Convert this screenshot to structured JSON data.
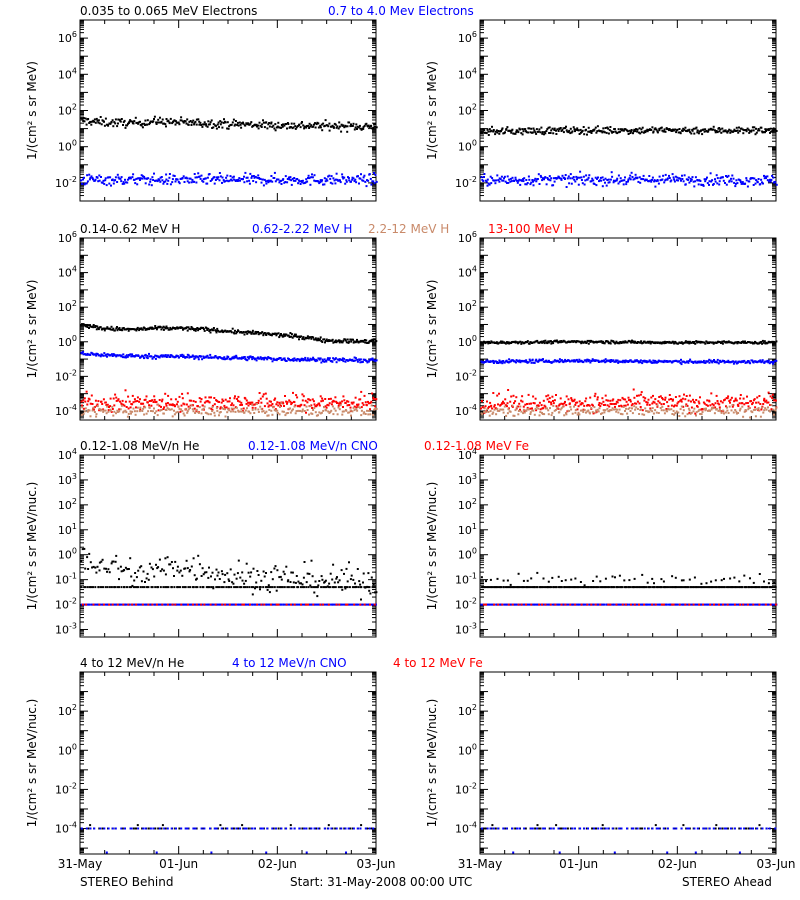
{
  "footer": {
    "left": "STEREO Behind",
    "center": "Start: 31-May-2008 00:00 UTC",
    "right": "STEREO Ahead"
  },
  "x_axis": {
    "tick_labels": [
      "31-May",
      "01-Jun",
      "02-Jun",
      "03-Jun"
    ],
    "range_days": [
      0,
      3
    ]
  },
  "rows": [
    {
      "ylabel": "1/(cm² s sr MeV)",
      "titles": [
        {
          "text": "0.035 to 0.065 MeV Electrons",
          "color": "#000000"
        },
        {
          "text": "0.7 to 4.0 Mev Electrons",
          "color": "#0000ff"
        }
      ]
    },
    {
      "ylabel": "1/(cm² s sr MeV)",
      "titles": [
        {
          "text": "0.14-0.62 MeV H",
          "color": "#000000"
        },
        {
          "text": "0.62-2.22 MeV H",
          "color": "#0000ff"
        },
        {
          "text": "2.2-12 MeV H",
          "color": "#c98a6a"
        },
        {
          "text": "13-100 MeV H",
          "color": "#ff0000"
        }
      ]
    },
    {
      "ylabel": "1/(cm² s sr MeV/nuc.)",
      "titles": [
        {
          "text": "0.12-1.08 MeV/n He",
          "color": "#000000"
        },
        {
          "text": "0.12-1.08 MeV/n CNO",
          "color": "#0000ff"
        },
        {
          "text": "0.12-1.08 MeV Fe",
          "color": "#ff0000"
        }
      ]
    },
    {
      "ylabel": "1/(cm² s sr MeV/nuc.)",
      "titles": [
        {
          "text": "4 to 12 MeV/n He",
          "color": "#000000"
        },
        {
          "text": "4 to 12 MeV/n CNO",
          "color": "#0000ff"
        },
        {
          "text": "4 to 12 MeV Fe",
          "color": "#ff0000"
        }
      ]
    }
  ],
  "chart_data": [
    {
      "type": "scatter",
      "panel": "Behind",
      "row": 0,
      "yscale": "log",
      "ylim": [
        0.001,
        10000000
      ],
      "yticks": [
        0.01,
        1,
        100,
        10000,
        1000000
      ],
      "xlim": [
        0,
        3
      ],
      "series": [
        {
          "color": "#000000",
          "x": [
            0,
            0.25,
            0.5,
            0.75,
            1.0,
            1.25,
            1.5,
            2.0,
            2.5,
            3.0
          ],
          "y": [
            28,
            22,
            20,
            25,
            22,
            20,
            18,
            15,
            14,
            13
          ],
          "scatter": 0.12,
          "density": 350
        },
        {
          "color": "#0000ff",
          "x": [
            0,
            1.0,
            2.0,
            3.0
          ],
          "y": [
            0.015,
            0.015,
            0.015,
            0.015
          ],
          "scatter": 0.15,
          "density": 350
        }
      ]
    },
    {
      "type": "scatter",
      "panel": "Ahead",
      "row": 0,
      "yscale": "log",
      "ylim": [
        0.001,
        10000000
      ],
      "yticks": [
        0.01,
        1,
        100,
        10000,
        1000000
      ],
      "xlim": [
        0,
        3
      ],
      "series": [
        {
          "color": "#000000",
          "x": [
            0,
            1.0,
            2.0,
            3.0
          ],
          "y": [
            7,
            8,
            8,
            8
          ],
          "scatter": 0.1,
          "density": 350
        },
        {
          "color": "#0000ff",
          "x": [
            0,
            1.0,
            2.0,
            3.0
          ],
          "y": [
            0.014,
            0.015,
            0.015,
            0.014
          ],
          "scatter": 0.15,
          "density": 350
        }
      ]
    },
    {
      "type": "scatter",
      "panel": "Behind",
      "row": 1,
      "yscale": "log",
      "ylim": [
        3e-05,
        1000000
      ],
      "yticks": [
        0.0001,
        0.01,
        1,
        100,
        10000,
        1000000
      ],
      "xlim": [
        0,
        3
      ],
      "series": [
        {
          "color": "#000000",
          "x": [
            0,
            0.2,
            0.5,
            0.8,
            1.0,
            1.3,
            1.5,
            2.0,
            2.2,
            2.5,
            2.9,
            3.0
          ],
          "y": [
            10,
            6,
            5,
            6,
            6,
            5,
            4,
            2.5,
            2,
            1.2,
            1.0,
            1.3
          ],
          "scatter": 0.06,
          "density": 350
        },
        {
          "color": "#0000ff",
          "x": [
            0,
            0.5,
            1.0,
            1.5,
            2.0,
            2.5,
            3.0
          ],
          "y": [
            0.2,
            0.15,
            0.14,
            0.12,
            0.1,
            0.09,
            0.08
          ],
          "scatter": 0.06,
          "density": 350
        },
        {
          "color": "#ff0000",
          "x": [
            0,
            1.0,
            2.0,
            3.0
          ],
          "y": [
            0.0003,
            0.0003,
            0.0003,
            0.0003
          ],
          "scatter": 0.25,
          "density": 350
        },
        {
          "color": "#c98a6a",
          "x": [
            0,
            1.0,
            2.0,
            3.0
          ],
          "y": [
            0.0001,
            0.0001,
            0.0001,
            0.0001
          ],
          "scatter": 0.15,
          "density": 250
        }
      ]
    },
    {
      "type": "scatter",
      "panel": "Ahead",
      "row": 1,
      "yscale": "log",
      "ylim": [
        3e-05,
        1000000
      ],
      "yticks": [
        0.0001,
        0.01,
        1,
        100,
        10000,
        1000000
      ],
      "xlim": [
        0,
        3
      ],
      "series": [
        {
          "color": "#000000",
          "x": [
            0,
            1.0,
            2.0,
            3.0
          ],
          "y": [
            0.9,
            1.0,
            0.9,
            0.9
          ],
          "scatter": 0.04,
          "density": 350
        },
        {
          "color": "#0000ff",
          "x": [
            0,
            1.0,
            2.0,
            3.0
          ],
          "y": [
            0.07,
            0.08,
            0.07,
            0.07
          ],
          "scatter": 0.05,
          "density": 350
        },
        {
          "color": "#ff0000",
          "x": [
            0,
            1.0,
            2.0,
            3.0
          ],
          "y": [
            0.0003,
            0.0003,
            0.0003,
            0.0003
          ],
          "scatter": 0.25,
          "density": 350
        },
        {
          "color": "#c98a6a",
          "x": [
            0,
            1.0,
            2.0,
            3.0
          ],
          "y": [
            0.0001,
            0.0001,
            0.0001,
            0.0001
          ],
          "scatter": 0.15,
          "density": 250
        }
      ]
    },
    {
      "type": "scatter",
      "panel": "Behind",
      "row": 2,
      "yscale": "log",
      "ylim": [
        0.0005,
        10000
      ],
      "yticks": [
        0.001,
        0.01,
        0.1,
        1,
        10,
        100,
        1000,
        10000
      ],
      "xlim": [
        0,
        3
      ],
      "series": [
        {
          "color": "#000000",
          "x": [
            0,
            0.3,
            0.6,
            0.9,
            1.2,
            1.5,
            2.0,
            2.5,
            3.0
          ],
          "y": [
            0.6,
            0.35,
            0.15,
            0.35,
            0.3,
            0.15,
            0.12,
            0.1,
            0.08
          ],
          "scatter": 0.3,
          "density": 220
        },
        {
          "color": "#000000",
          "x": [
            0,
            3.0
          ],
          "y": [
            0.05,
            0.05
          ],
          "scatter": 0.0,
          "density": 150
        },
        {
          "color": "#0000ff",
          "x": [
            0,
            3.0
          ],
          "y": [
            0.01,
            0.01
          ],
          "scatter": 0.0,
          "density": 250
        },
        {
          "color": "#ff0000",
          "x": [
            0,
            3.0
          ],
          "y": [
            0.01,
            0.01
          ],
          "scatter": 0.0,
          "density": 60
        }
      ]
    },
    {
      "type": "scatter",
      "panel": "Ahead",
      "row": 2,
      "yscale": "log",
      "ylim": [
        0.0005,
        10000
      ],
      "yticks": [
        0.001,
        0.01,
        0.1,
        1,
        10,
        100,
        1000,
        10000
      ],
      "xlim": [
        0,
        3
      ],
      "series": [
        {
          "color": "#000000",
          "x": [
            0,
            3.0
          ],
          "y": [
            0.1,
            0.1
          ],
          "scatter": 0.1,
          "density": 60
        },
        {
          "color": "#000000",
          "x": [
            0,
            3.0
          ],
          "y": [
            0.05,
            0.05
          ],
          "scatter": 0.0,
          "density": 220
        },
        {
          "color": "#0000ff",
          "x": [
            0,
            3.0
          ],
          "y": [
            0.01,
            0.01
          ],
          "scatter": 0.0,
          "density": 250
        },
        {
          "color": "#ff0000",
          "x": [
            0,
            3.0
          ],
          "y": [
            0.01,
            0.01
          ],
          "scatter": 0.0,
          "density": 60
        }
      ]
    },
    {
      "type": "scatter",
      "panel": "Behind",
      "row": 3,
      "yscale": "log",
      "ylim": [
        5e-06,
        10000
      ],
      "yticks": [
        0.0001,
        0.01,
        1,
        100
      ],
      "xlim": [
        0,
        3
      ],
      "series": [
        {
          "color": "#000000",
          "x": [
            0,
            3.0
          ],
          "y": [
            0.0001,
            0.0001
          ],
          "scatter": 0.0,
          "density": 70
        },
        {
          "color": "#0000ff",
          "x": [
            0,
            3.0
          ],
          "y": [
            0.0001,
            0.0001
          ],
          "scatter": 0.0,
          "density": 70
        },
        {
          "color": "#000000",
          "x": [
            0,
            3.0
          ],
          "y": [
            0.00015,
            0.00015
          ],
          "scatter": 0.0,
          "density": 8
        },
        {
          "color": "#0000ff",
          "x": [
            0,
            3.0
          ],
          "y": [
            6e-06,
            6e-06
          ],
          "scatter": 0.0,
          "density": 6
        }
      ]
    },
    {
      "type": "scatter",
      "panel": "Ahead",
      "row": 3,
      "yscale": "log",
      "ylim": [
        5e-06,
        10000
      ],
      "yticks": [
        0.0001,
        0.01,
        1,
        100
      ],
      "xlim": [
        0,
        3
      ],
      "series": [
        {
          "color": "#000000",
          "x": [
            0,
            3.0
          ],
          "y": [
            0.0001,
            0.0001
          ],
          "scatter": 0.0,
          "density": 70
        },
        {
          "color": "#0000ff",
          "x": [
            0,
            3.0
          ],
          "y": [
            0.0001,
            0.0001
          ],
          "scatter": 0.0,
          "density": 70
        },
        {
          "color": "#000000",
          "x": [
            0,
            3.0
          ],
          "y": [
            0.00015,
            0.00015
          ],
          "scatter": 0.0,
          "density": 8
        },
        {
          "color": "#0000ff",
          "x": [
            0,
            3.0
          ],
          "y": [
            6e-06,
            6e-06
          ],
          "scatter": 0.0,
          "density": 6
        }
      ]
    }
  ]
}
